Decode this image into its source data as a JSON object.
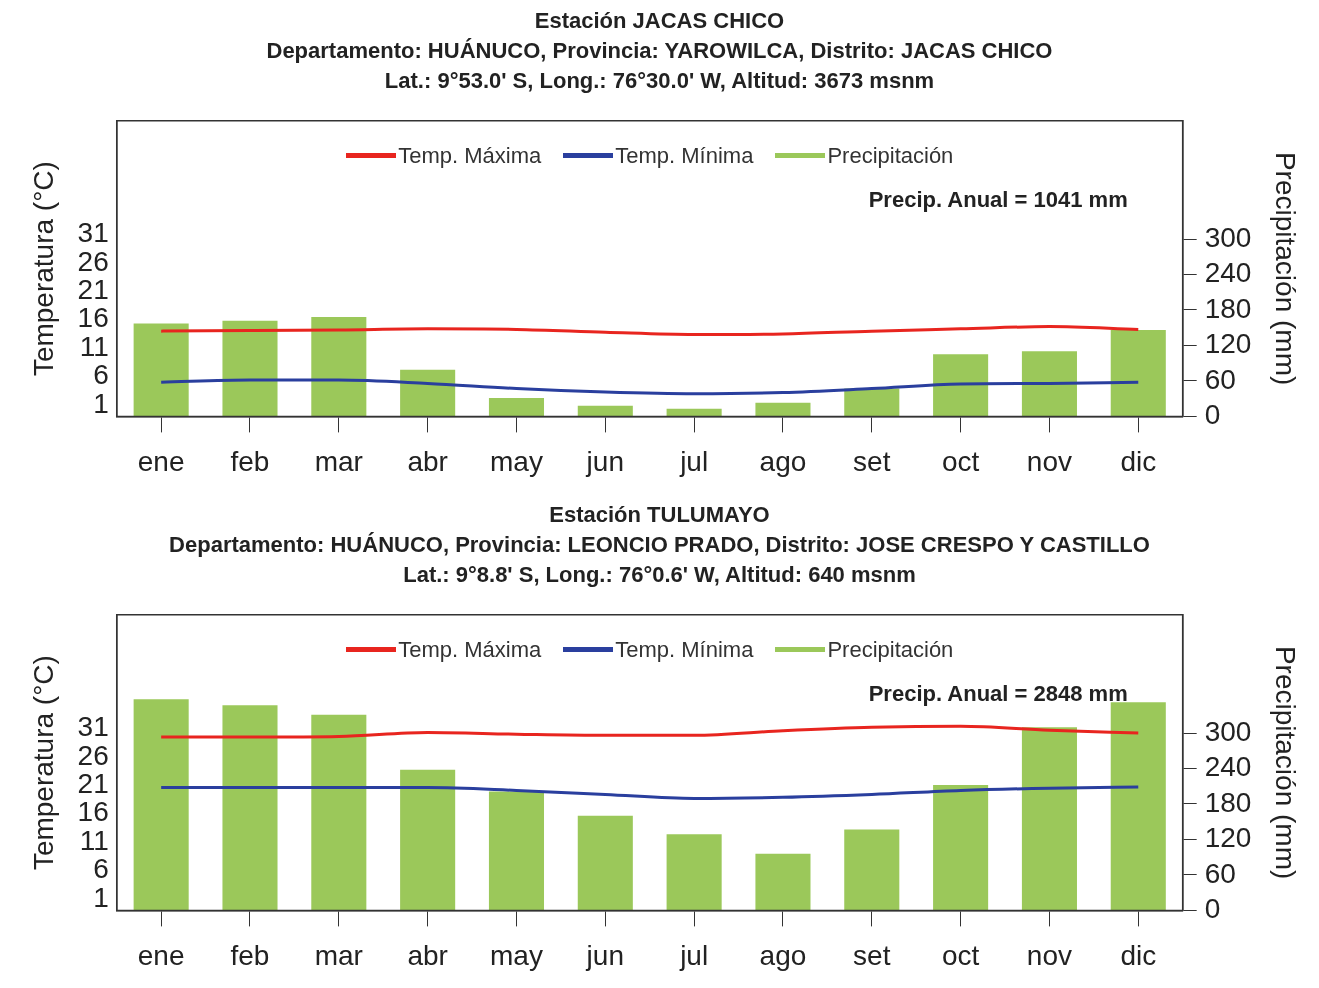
{
  "chart_data": [
    {
      "type": "bar",
      "title": "Estación JACAS CHICO",
      "subtitle": "Departamento: HUÁNUCO, Provincia: YAROWILCA, Distrito: JACAS CHICO",
      "annotations": [
        "Lat.: 9°53.0' S, Long.: 76°30.0' W, Altitud: 3673 msnm",
        "Precip. Anual = 1041 mm"
      ],
      "categories": [
        "ene",
        "feb",
        "mar",
        "abr",
        "may",
        "jun",
        "jul",
        "ago",
        "set",
        "oct",
        "nov",
        "dic"
      ],
      "series": [
        {
          "name": "Temp. Máxima",
          "type": "line",
          "color": "#e8251f",
          "values": [
            14.0,
            14.1,
            14.2,
            14.4,
            14.3,
            13.8,
            13.4,
            13.5,
            14.0,
            14.4,
            14.8,
            14.3
          ]
        },
        {
          "name": "Temp. Mínima",
          "type": "line",
          "color": "#2a3f9e",
          "values": [
            5.0,
            5.4,
            5.4,
            4.8,
            3.9,
            3.3,
            3.0,
            3.2,
            3.9,
            4.7,
            4.8,
            5.0
          ]
        },
        {
          "name": "Precipitación",
          "axis": "y2",
          "color": "#9bc85a",
          "values": [
            157,
            162,
            168,
            79,
            31,
            18,
            13,
            23,
            47,
            105,
            110,
            146
          ]
        }
      ],
      "ylabel": "Temperatura (°C)",
      "y2label": "Precipitación (mm)",
      "ylim": [
        -1,
        51
      ],
      "yticks": [
        1,
        6,
        11,
        16,
        21,
        26,
        31
      ],
      "y2lim": [
        0,
        500
      ],
      "y2ticks": [
        0,
        60,
        120,
        180,
        240,
        300
      ],
      "legend": "top",
      "grid": false
    },
    {
      "type": "bar",
      "title": "Estación TULUMAYO",
      "subtitle": "Departamento: HUÁNUCO, Provincia: LEONCIO PRADO, Distrito: JOSE CRESPO Y CASTILLO",
      "annotations": [
        "Lat.: 9°8.8' S, Long.: 76°0.6' W, Altitud: 640 msnm",
        "Precip. Anual = 2848 mm"
      ],
      "categories": [
        "ene",
        "feb",
        "mar",
        "abr",
        "may",
        "jun",
        "jul",
        "ago",
        "set",
        "oct",
        "nov",
        "dic"
      ],
      "series": [
        {
          "name": "Temp. Máxima",
          "type": "line",
          "color": "#e8251f",
          "values": [
            29.5,
            29.5,
            29.6,
            30.3,
            30.0,
            29.8,
            29.8,
            30.6,
            31.2,
            31.4,
            30.7,
            30.2
          ]
        },
        {
          "name": "Temp. Mínima",
          "type": "line",
          "color": "#2a3f9e",
          "values": [
            20.6,
            20.6,
            20.6,
            20.6,
            20.1,
            19.4,
            18.7,
            18.9,
            19.4,
            20.1,
            20.5,
            20.7
          ]
        },
        {
          "name": "Precipitación",
          "axis": "y2",
          "color": "#9bc85a",
          "values": [
            357,
            347,
            331,
            238,
            201,
            160,
            129,
            96,
            137,
            212,
            310,
            352
          ]
        }
      ],
      "ylabel": "Temperatura (°C)",
      "y2label": "Precipitación (mm)",
      "ylim": [
        -1,
        51
      ],
      "yticks": [
        1,
        6,
        11,
        16,
        21,
        26,
        31
      ],
      "y2lim": [
        0,
        500
      ],
      "y2ticks": [
        0,
        60,
        120,
        180,
        240,
        300
      ],
      "legend": "top",
      "grid": false
    }
  ]
}
